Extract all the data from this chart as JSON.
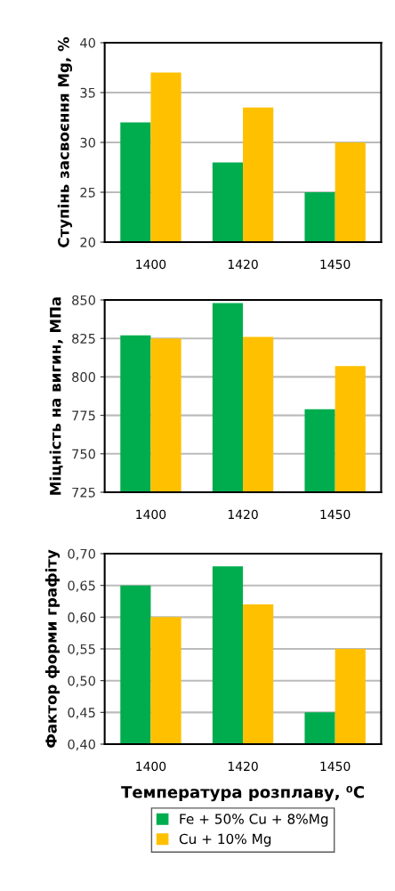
{
  "chart_data": [
    {
      "type": "bar",
      "ylabel": "Ступінь засвоєння Mg, %",
      "categories": [
        "1400",
        "1420",
        "1450"
      ],
      "series": [
        {
          "color": "#00ad4e",
          "values": [
            32,
            28,
            25
          ]
        },
        {
          "color": "#ffc000",
          "values": [
            37,
            33.5,
            30
          ]
        }
      ],
      "ylim": [
        20,
        40
      ],
      "yticks": [
        20,
        25,
        30,
        35,
        40
      ],
      "grid": "y",
      "legend": false
    },
    {
      "type": "bar",
      "ylabel": "Міцність на вигин, МПа",
      "categories": [
        "1400",
        "1420",
        "1450"
      ],
      "series": [
        {
          "color": "#00ad4e",
          "values": [
            827,
            848,
            779
          ]
        },
        {
          "color": "#ffc000",
          "values": [
            825,
            826,
            807
          ]
        }
      ],
      "ylim": [
        725,
        850
      ],
      "yticks": [
        725,
        750,
        775,
        800,
        825,
        850
      ],
      "grid": "y",
      "legend": false
    },
    {
      "type": "bar",
      "ylabel": "Фактор форми графіту",
      "xlabel": "Температура розплаву, ⁰C",
      "categories": [
        "1400",
        "1420",
        "1450"
      ],
      "series": [
        {
          "name": "Fe + 50% Cu + 8%Mg",
          "color": "#00ad4e",
          "values": [
            0.65,
            0.68,
            0.45
          ]
        },
        {
          "name": "Cu + 10% Mg",
          "color": "#ffc000",
          "values": [
            0.6,
            0.62,
            0.55
          ]
        }
      ],
      "ylim": [
        0.4,
        0.7
      ],
      "yticks": [
        {
          "value": 0.4,
          "label": "0,40"
        },
        {
          "value": 0.45,
          "label": "0,45"
        },
        {
          "value": 0.5,
          "label": "0,50"
        },
        {
          "value": 0.55,
          "label": "0,55"
        },
        {
          "value": 0.6,
          "label": "0,60"
        },
        {
          "value": 0.65,
          "label": "0,65"
        },
        {
          "value": 0.7,
          "label": "0,70"
        }
      ],
      "grid": "y",
      "legend": "bottom"
    }
  ]
}
